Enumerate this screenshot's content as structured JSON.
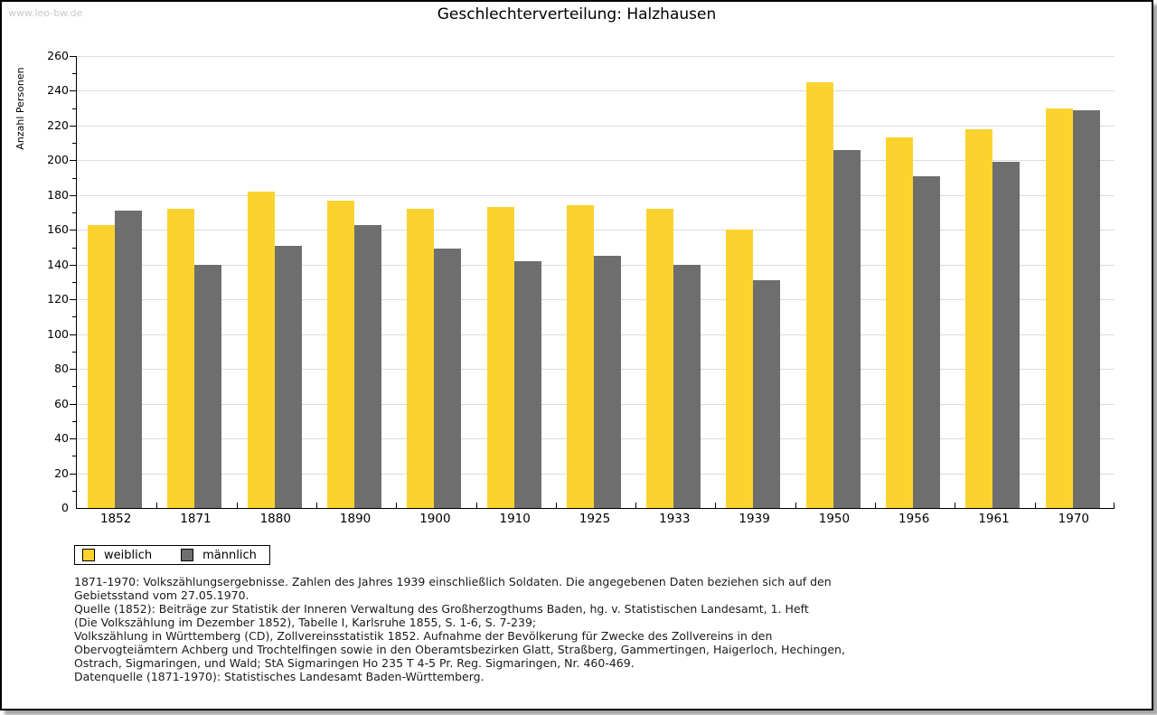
{
  "watermark": "www.leo-bw.de",
  "chart_data": {
    "type": "bar",
    "title": "Geschlechterverteilung: Halzhausen",
    "ylabel": "Anzahl Personen",
    "xlabel": "",
    "categories": [
      "1852",
      "1871",
      "1880",
      "1890",
      "1900",
      "1910",
      "1925",
      "1933",
      "1939",
      "1950",
      "1956",
      "1961",
      "1970"
    ],
    "series": [
      {
        "name": "weiblich",
        "color": "#FCD32E",
        "values": [
          163,
          172,
          182,
          177,
          172,
          173,
          174,
          172,
          160,
          245,
          213,
          218,
          230
        ]
      },
      {
        "name": "männlich",
        "color": "#6E6E6E",
        "values": [
          171,
          140,
          151,
          163,
          149,
          142,
          145,
          140,
          131,
          206,
          191,
          199,
          229
        ]
      }
    ],
    "ylim": [
      0,
      260
    ],
    "ytick_step": 20,
    "yminor_step": 10,
    "grid": true,
    "legend_position": "bottom-left",
    "colors": {
      "grid": "#DCDCDC",
      "axis": "#000000"
    }
  },
  "footer": {
    "lines": [
      "1871-1970: Volkszählungsergebnisse. Zahlen des Jahres 1939 einschließlich Soldaten. Die angegebenen Daten beziehen sich auf den",
      "Gebietsstand vom 27.05.1970.",
      "Quelle (1852): Beiträge zur Statistik der Inneren Verwaltung des Großherzogthums Baden, hg. v. Statistischen Landesamt, 1. Heft",
      "(Die Volkszählung im Dezember 1852), Tabelle I, Karlsruhe 1855, S. 1-6, S. 7-239;",
      "Volkszählung in Württemberg (CD), Zollvereinsstatistik 1852. Aufnahme der Bevölkerung für Zwecke des Zollvereins in den",
      "Obervogteiämtern Achberg und Trochtelfingen sowie in den Oberamtsbezirken Glatt, Straßberg, Gammertingen, Haigerloch, Hechingen,",
      "Ostrach, Sigmaringen, und Wald; StA Sigmaringen Ho 235 T 4-5 Pr. Reg. Sigmaringen, Nr. 460-469."
    ],
    "datasource": "Datenquelle (1871-1970): Statistisches Landesamt Baden-Württemberg."
  }
}
